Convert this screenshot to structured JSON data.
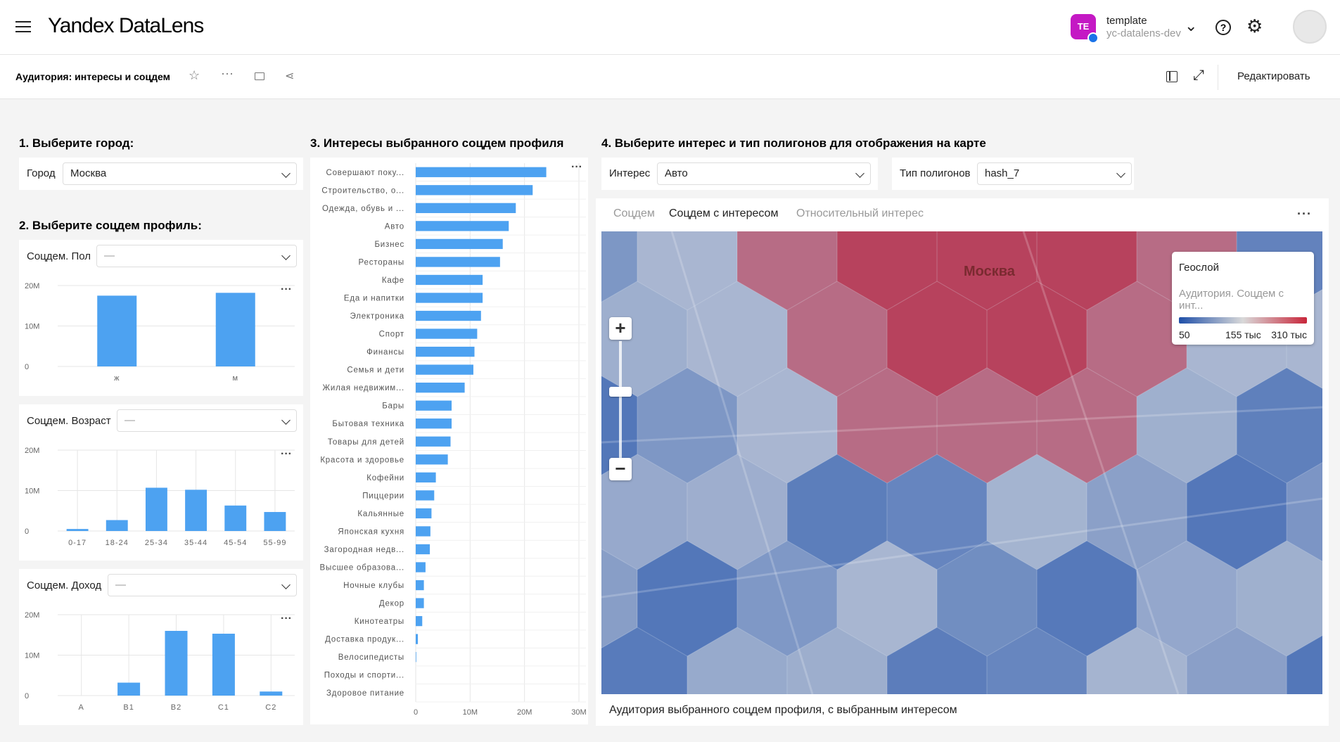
{
  "header": {
    "logo_yandex": "Yandex",
    "logo_product": "DataLens",
    "avatar_initials": "TE",
    "org_name": "template",
    "org_sub": "yc-datalens-dev"
  },
  "dashboard": {
    "title": "Аудитория: интересы и соцдем",
    "edit_label": "Редактировать"
  },
  "filters": {
    "city_title": "1. Выберите город:",
    "city_label": "Город",
    "city_value": "Москва",
    "profile_title": "2. Выберите соцдем профиль:",
    "gender_label": "Соцдем. Пол",
    "gender_value": "—",
    "age_label": "Соцдем. Возраст",
    "age_value": "—",
    "income_label": "Соцдем. Доход",
    "income_value": "—"
  },
  "interests_title": "3. Интересы выбранного соцдем профиля",
  "map_section": {
    "title": "4. Выберите интерес и тип полигонов для отображения на карте",
    "interest_label": "Интерес",
    "interest_value": "Авто",
    "polygon_label": "Тип полигонов",
    "polygon_value": "hash_7",
    "tabs": [
      "Соцдем",
      "Соцдем с интересом",
      "Относительный интерес"
    ],
    "active_tab": 1,
    "city_label": "Москва",
    "legend": {
      "title": "Геослой",
      "subtitle": "Аудитория. Соцдем с инт...",
      "min": "50",
      "mid": "155 тыс",
      "max": "310 тыс",
      "color_low": "#1f4fa8",
      "color_mid": "#d9d9d9",
      "color_high": "#c8263a"
    },
    "caption": "Аудитория выбранного соцдем профиля, с выбранным интересом"
  },
  "colors": {
    "bar": "#4da2f1",
    "accent": "#c419c4"
  },
  "chart_data": [
    {
      "type": "bar",
      "categories": [
        "ж",
        "м"
      ],
      "values": [
        17.5,
        18.2
      ],
      "yticks": [
        "0",
        "10M",
        "20M"
      ],
      "ylim": [
        0,
        20
      ]
    },
    {
      "type": "bar",
      "categories": [
        "0-17",
        "18-24",
        "25-34",
        "35-44",
        "45-54",
        "55-99"
      ],
      "values": [
        0.5,
        2.7,
        10.7,
        10.2,
        6.3,
        4.7
      ],
      "yticks": [
        "0",
        "10M",
        "20M"
      ],
      "ylim": [
        0,
        20
      ]
    },
    {
      "type": "bar",
      "categories": [
        "A",
        "B1",
        "B2",
        "C1",
        "C2"
      ],
      "values": [
        0,
        3.2,
        16,
        15.3,
        1
      ],
      "yticks": [
        "0",
        "10M",
        "20M"
      ],
      "ylim": [
        0,
        20
      ]
    },
    {
      "type": "bar",
      "orientation": "horizontal",
      "categories": [
        "Совершают поку...",
        "Строительство, о...",
        "Одежда, обувь и ...",
        "Авто",
        "Бизнес",
        "Рестораны",
        "Кафе",
        "Еда и напитки",
        "Электроника",
        "Спорт",
        "Финансы",
        "Семья и дети",
        "Жилая недвижим...",
        "Бары",
        "Бытовая техника",
        "Товары для детей",
        "Красота и здоровье",
        "Кофейни",
        "Пиццерии",
        "Кальянные",
        "Японская кухня",
        "Загородная недв...",
        "Высшее образова...",
        "Ночные клубы",
        "Декор",
        "Кинотеатры",
        "Доставка продук...",
        "Велосипедисты",
        "Походы и спорти...",
        "Здоровое питание"
      ],
      "values": [
        24.0,
        21.5,
        18.4,
        17.1,
        16.0,
        15.5,
        12.3,
        12.3,
        12.0,
        11.3,
        10.8,
        10.6,
        9.0,
        6.6,
        6.6,
        6.4,
        5.9,
        3.7,
        3.4,
        2.9,
        2.7,
        2.6,
        1.8,
        1.5,
        1.5,
        1.2,
        0.4,
        0.1,
        0,
        0
      ],
      "xticks": [
        "0",
        "10M",
        "20M",
        "30M"
      ],
      "xlim": [
        0,
        30
      ]
    }
  ]
}
